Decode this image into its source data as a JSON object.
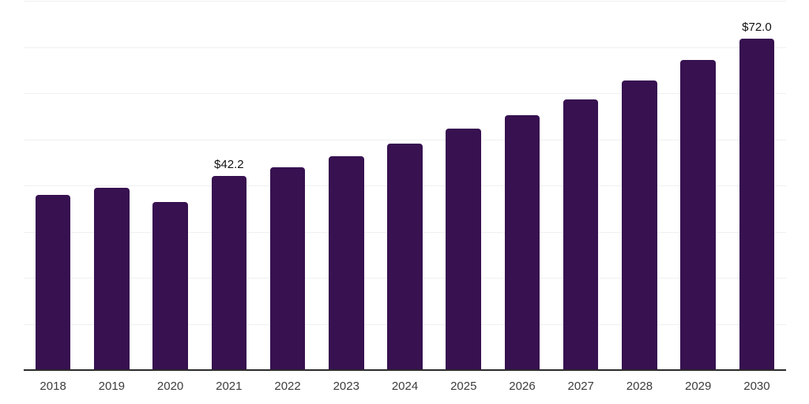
{
  "chart_data": {
    "type": "bar",
    "title": "",
    "xlabel": "",
    "ylabel": "",
    "categories": [
      "2018",
      "2019",
      "2020",
      "2021",
      "2022",
      "2023",
      "2024",
      "2025",
      "2026",
      "2027",
      "2028",
      "2029",
      "2030"
    ],
    "values": [
      38.2,
      39.7,
      36.5,
      42.2,
      44.1,
      46.5,
      49.2,
      52.5,
      55.4,
      58.8,
      62.9,
      67.4,
      72.0
    ],
    "data_labels": {
      "2021": "$42.2",
      "2030": "$72.0"
    },
    "ylim": [
      0,
      80
    ],
    "gridline_step": 10,
    "grid": true,
    "legend": false,
    "colors": {
      "bar": "#371150",
      "axis": "#2b2b2b",
      "gridline": "#f0f0f1",
      "tick_label": "#3c3c3c",
      "data_label": "#111111"
    }
  }
}
